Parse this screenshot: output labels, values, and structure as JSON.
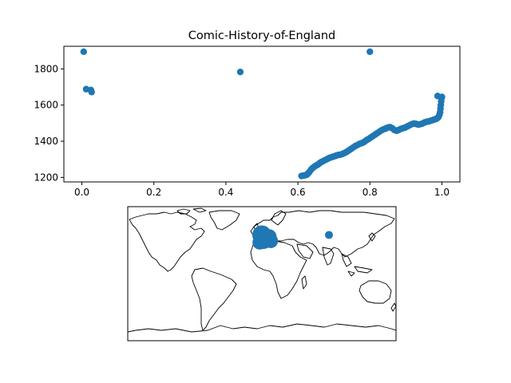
{
  "chart_data": [
    {
      "type": "scatter",
      "title": "Comic-History-of-England",
      "xlabel": "",
      "ylabel": "",
      "xlim": [
        -0.05,
        1.05
      ],
      "ylim": [
        1175,
        1925
      ],
      "xticks": [
        "0.0",
        "0.2",
        "0.4",
        "0.6",
        "0.8",
        "1.0"
      ],
      "yticks": [
        "1200",
        "1400",
        "1600",
        "1800"
      ],
      "grid": false,
      "marker_color": "#1f77b4",
      "points": [
        [
          0.005,
          1895
        ],
        [
          0.012,
          1688
        ],
        [
          0.025,
          1683
        ],
        [
          0.027,
          1672
        ],
        [
          0.44,
          1783
        ],
        [
          0.8,
          1895
        ],
        [
          0.61,
          1208
        ],
        [
          0.615,
          1210
        ],
        [
          0.62,
          1212
        ],
        [
          0.625,
          1215
        ],
        [
          0.628,
          1222
        ],
        [
          0.632,
          1230
        ],
        [
          0.636,
          1242
        ],
        [
          0.64,
          1250
        ],
        [
          0.645,
          1258
        ],
        [
          0.65,
          1265
        ],
        [
          0.655,
          1270
        ],
        [
          0.66,
          1278
        ],
        [
          0.665,
          1285
        ],
        [
          0.67,
          1290
        ],
        [
          0.676,
          1296
        ],
        [
          0.682,
          1302
        ],
        [
          0.688,
          1308
        ],
        [
          0.694,
          1312
        ],
        [
          0.7,
          1316
        ],
        [
          0.706,
          1320
        ],
        [
          0.712,
          1324
        ],
        [
          0.718,
          1326
        ],
        [
          0.724,
          1330
        ],
        [
          0.73,
          1335
        ],
        [
          0.736,
          1342
        ],
        [
          0.742,
          1350
        ],
        [
          0.748,
          1358
        ],
        [
          0.754,
          1366
        ],
        [
          0.76,
          1374
        ],
        [
          0.766,
          1380
        ],
        [
          0.772,
          1386
        ],
        [
          0.778,
          1390
        ],
        [
          0.784,
          1396
        ],
        [
          0.79,
          1405
        ],
        [
          0.796,
          1412
        ],
        [
          0.802,
          1420
        ],
        [
          0.808,
          1428
        ],
        [
          0.814,
          1436
        ],
        [
          0.82,
          1444
        ],
        [
          0.826,
          1452
        ],
        [
          0.832,
          1460
        ],
        [
          0.838,
          1466
        ],
        [
          0.844,
          1470
        ],
        [
          0.85,
          1476
        ],
        [
          0.856,
          1478
        ],
        [
          0.862,
          1472
        ],
        [
          0.868,
          1462
        ],
        [
          0.874,
          1458
        ],
        [
          0.88,
          1462
        ],
        [
          0.886,
          1468
        ],
        [
          0.892,
          1472
        ],
        [
          0.898,
          1476
        ],
        [
          0.904,
          1482
        ],
        [
          0.91,
          1488
        ],
        [
          0.916,
          1494
        ],
        [
          0.922,
          1498
        ],
        [
          0.928,
          1496
        ],
        [
          0.934,
          1492
        ],
        [
          0.94,
          1494
        ],
        [
          0.946,
          1498
        ],
        [
          0.952,
          1504
        ],
        [
          0.958,
          1508
        ],
        [
          0.964,
          1510
        ],
        [
          0.97,
          1514
        ],
        [
          0.976,
          1518
        ],
        [
          0.982,
          1522
        ],
        [
          0.986,
          1526
        ],
        [
          0.99,
          1532
        ],
        [
          0.993,
          1545
        ],
        [
          0.995,
          1560
        ],
        [
          0.996,
          1580
        ],
        [
          0.997,
          1600
        ],
        [
          0.998,
          1620
        ],
        [
          0.999,
          1638
        ],
        [
          1.0,
          1645
        ],
        [
          0.988,
          1650
        ]
      ]
    },
    {
      "type": "map",
      "projection": "equirectangular",
      "marker_color": "#1f77b4",
      "markers": [
        {
          "lon": 0,
          "lat": 52,
          "size": "large"
        },
        {
          "lon": 4,
          "lat": 48,
          "size": "large"
        },
        {
          "lon": -3,
          "lat": 42,
          "size": "medium"
        },
        {
          "lon": 10,
          "lat": 50,
          "size": "medium"
        },
        {
          "lon": 2,
          "lat": 46,
          "size": "large"
        },
        {
          "lon": 12,
          "lat": 44,
          "size": "medium"
        },
        {
          "lon": 90,
          "lat": 52,
          "size": "small"
        }
      ]
    }
  ]
}
